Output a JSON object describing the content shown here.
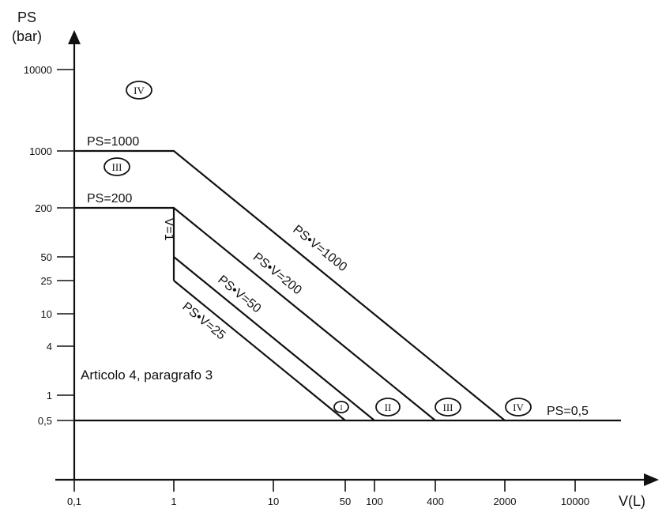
{
  "axes": {
    "y_title_line1": "PS",
    "y_title_line2": "(bar)",
    "x_title": "V(L)",
    "y_ticks": [
      "10000",
      "1000",
      "200",
      "50",
      "25",
      "10",
      "4",
      "1",
      "0,5"
    ],
    "x_ticks": [
      "0,1",
      "1",
      "10",
      "50",
      "100",
      "400",
      "2000",
      "10000"
    ]
  },
  "lines": {
    "ps1000": "PS=1000",
    "ps200": "PS=200",
    "ps05": "PS=0,5",
    "v1": "V=1",
    "psv1000": "PS•V=1000",
    "psv200": "PS•V=200",
    "psv50": "PS•V=50",
    "psv25": "PS•V=25"
  },
  "categories": {
    "top_left": "IV",
    "under_1000": "III",
    "bottom_i": "I",
    "bottom_ii": "II",
    "bottom_iii": "III",
    "bottom_iv": "IV"
  },
  "note": "Articolo 4, paragrafo 3"
}
